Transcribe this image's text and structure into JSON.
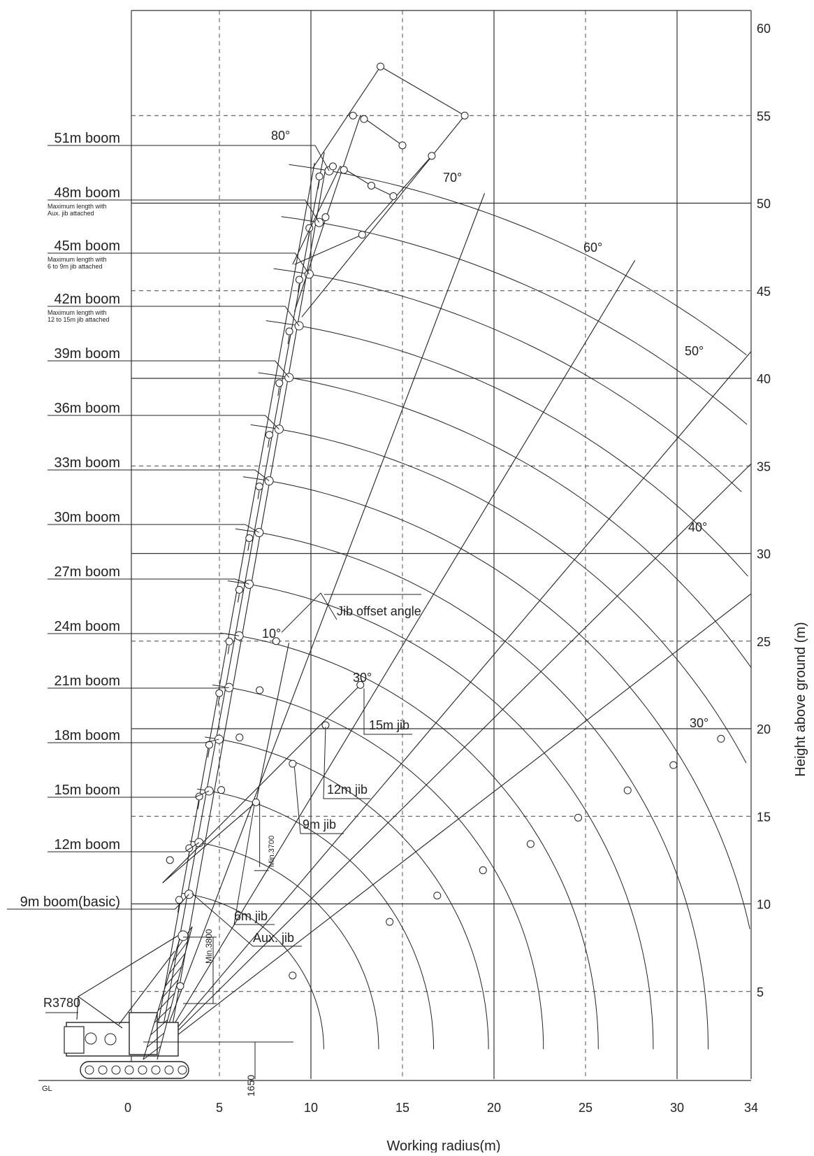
{
  "chart": {
    "x_axis": {
      "label": "Working radius(m)",
      "ticks": [
        "0",
        "5",
        "10",
        "15",
        "20",
        "25",
        "30",
        "34"
      ],
      "tick_values": [
        0,
        5,
        10,
        15,
        20,
        25,
        30,
        34
      ],
      "range": [
        -3.8,
        34
      ]
    },
    "y_axis": {
      "label": "Height above ground (m)",
      "ticks": [
        "5",
        "10",
        "15",
        "20",
        "25",
        "30",
        "35",
        "40",
        "45",
        "50",
        "55",
        "60"
      ],
      "tick_values": [
        5,
        10,
        15,
        20,
        25,
        30,
        35,
        40,
        45,
        50,
        55,
        60
      ],
      "range": [
        0,
        60
      ]
    },
    "ground_label": "GL",
    "dimensions": {
      "tail_radius": "R3780",
      "pin_height": "1650",
      "min_3800": "Min.3800",
      "min_3700": "Min.3700"
    }
  },
  "booms": [
    {
      "label": "51m boom",
      "note": "",
      "length": 51
    },
    {
      "label": "48m boom",
      "note": "Maximum length with\nAux. jib attached",
      "length": 48
    },
    {
      "label": "45m boom",
      "note": "Maximum length with\n6 to 9m jib attached",
      "length": 45
    },
    {
      "label": "42m boom",
      "note": "Maximum length with\n12 to 15m jib attached",
      "length": 42
    },
    {
      "label": "39m boom",
      "note": "",
      "length": 39
    },
    {
      "label": "36m boom",
      "note": "",
      "length": 36
    },
    {
      "label": "33m boom",
      "note": "",
      "length": 33
    },
    {
      "label": "30m boom",
      "note": "",
      "length": 30
    },
    {
      "label": "27m boom",
      "note": "",
      "length": 27
    },
    {
      "label": "24m boom",
      "note": "",
      "length": 24
    },
    {
      "label": "21m boom",
      "note": "",
      "length": 21
    },
    {
      "label": "18m boom",
      "note": "",
      "length": 18
    },
    {
      "label": "15m boom",
      "note": "",
      "length": 15
    },
    {
      "label": "12m boom",
      "note": "",
      "length": 12
    },
    {
      "label": "9m boom(basic)",
      "note": "",
      "length": 9
    }
  ],
  "boom_angles": [
    "80°",
    "70°",
    "60°",
    "50°",
    "40°",
    "30°"
  ],
  "jib_labels": {
    "offset_title": "Jib offset angle",
    "offset_10": "10°",
    "offset_30": "30°",
    "jib_15": "15m jib",
    "jib_12": "12m jib",
    "jib_9": "9m jib",
    "jib_6": "6m jib",
    "aux": "Aux. jib"
  }
}
